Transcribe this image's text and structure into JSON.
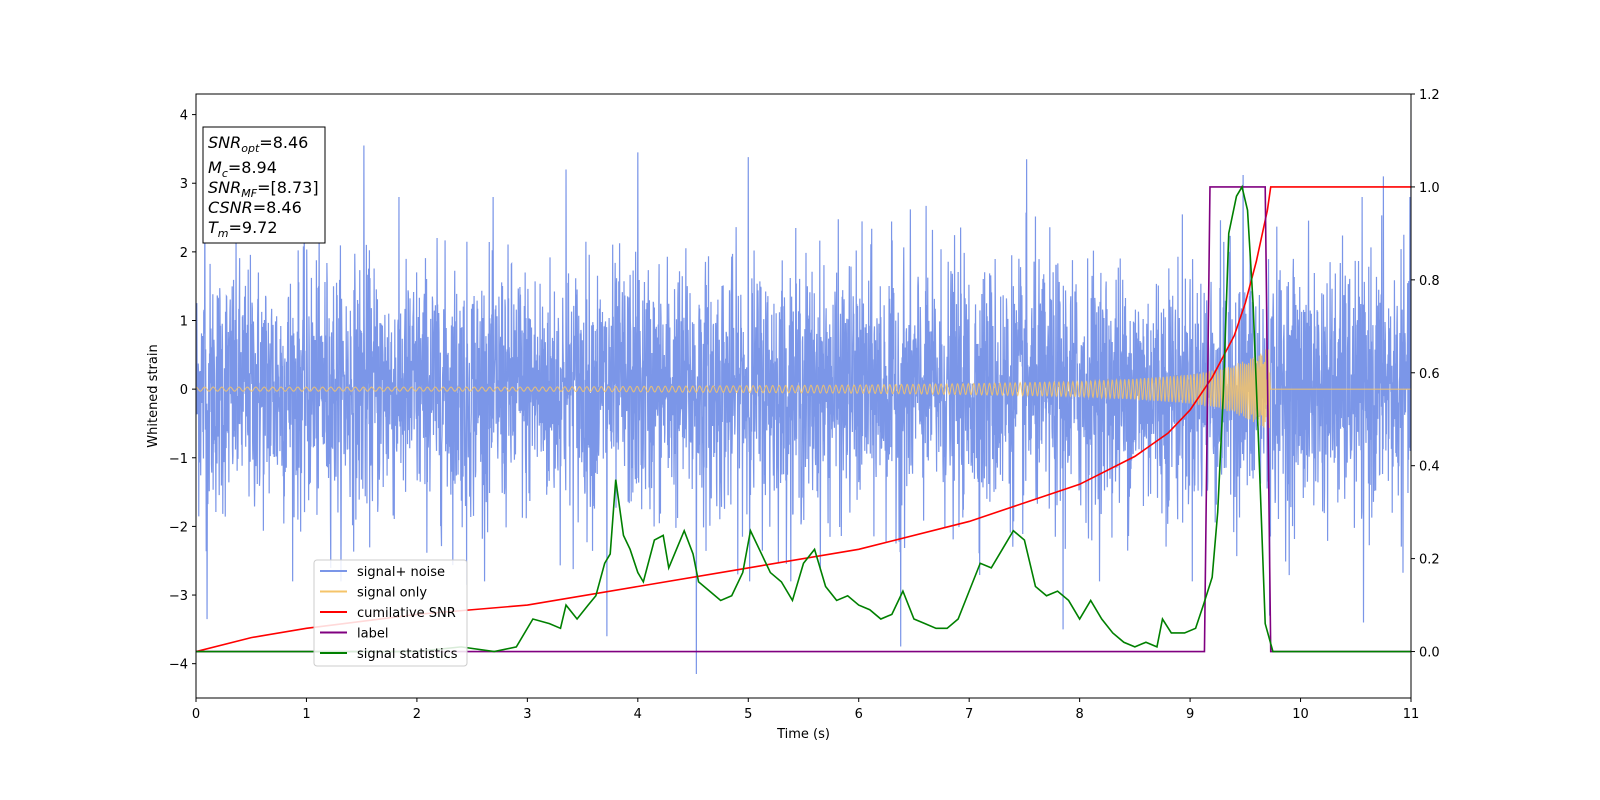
{
  "chart_data": {
    "type": "line",
    "title": "",
    "xlabel": "Time (s)",
    "ylabel": "Whitened strain",
    "xlim": [
      0,
      11
    ],
    "ylim": [
      -4.5,
      4.3
    ],
    "ylim_right": [
      -0.1,
      1.2
    ],
    "x_ticks": [
      0,
      1,
      2,
      3,
      4,
      5,
      6,
      7,
      8,
      9,
      10,
      11
    ],
    "y_ticks": [
      -4,
      -3,
      -2,
      -1,
      0,
      1,
      2,
      3,
      4
    ],
    "y_ticks_right": [
      0.0,
      0.2,
      0.4,
      0.6,
      0.8,
      1.0,
      1.2
    ],
    "grid": false,
    "legend_position": "lower-left",
    "info_box": {
      "position": "top-left",
      "lines": [
        {
          "main": "SNR",
          "sub": "opt",
          "value": "=8.46"
        },
        {
          "main": "M",
          "sub": "c",
          "value": "=8.94"
        },
        {
          "main": "SNR",
          "sub": "MF",
          "value": "=[8.73]"
        },
        {
          "main": "CSNR",
          "sub": "",
          "value": "=8.46"
        },
        {
          "main": "T",
          "sub": "m",
          "value": "=9.72"
        }
      ]
    },
    "series": [
      {
        "name": "signal+ noise",
        "axis": "left",
        "color": "#7b96e8",
        "style": "noise",
        "description_values": {
          "approx_std": 0.9,
          "min": -4.15,
          "max": 3.92
        },
        "peaks": [
          [
            0.08,
            2.9
          ],
          [
            0.1,
            -3.35
          ],
          [
            1.52,
            3.55
          ],
          [
            2.45,
            -2.85
          ],
          [
            3.35,
            3.2
          ],
          [
            3.72,
            -3.6
          ],
          [
            4.0,
            3.45
          ],
          [
            4.53,
            -4.15
          ],
          [
            5.0,
            3.38
          ],
          [
            6.38,
            -3.75
          ],
          [
            7.52,
            3.35
          ],
          [
            7.85,
            -3.5
          ],
          [
            9.48,
            3.12
          ],
          [
            9.72,
            -3.3
          ],
          [
            10.57,
            -3.4
          ],
          [
            10.75,
            3.1
          ],
          [
            11.0,
            3.92
          ]
        ]
      },
      {
        "name": "signal only",
        "axis": "left",
        "color": "#f5c46a",
        "style": "chirp",
        "amplitude_envelope": [
          [
            0,
            0.03
          ],
          [
            3,
            0.03
          ],
          [
            5,
            0.05
          ],
          [
            6,
            0.06
          ],
          [
            7,
            0.08
          ],
          [
            8,
            0.11
          ],
          [
            8.5,
            0.15
          ],
          [
            9,
            0.21
          ],
          [
            9.3,
            0.3
          ],
          [
            9.5,
            0.42
          ],
          [
            9.6,
            0.5
          ],
          [
            9.72,
            0.62
          ],
          [
            9.73,
            0
          ]
        ]
      },
      {
        "name": "cumilative SNR",
        "axis": "right",
        "color": "#ff0000",
        "points": [
          [
            0,
            0.0
          ],
          [
            0.5,
            0.03
          ],
          [
            1,
            0.05
          ],
          [
            2,
            0.08
          ],
          [
            3,
            0.1
          ],
          [
            4,
            0.14
          ],
          [
            5,
            0.18
          ],
          [
            6,
            0.22
          ],
          [
            7,
            0.28
          ],
          [
            7.5,
            0.32
          ],
          [
            8,
            0.36
          ],
          [
            8.5,
            0.42
          ],
          [
            8.8,
            0.47
          ],
          [
            9,
            0.52
          ],
          [
            9.2,
            0.59
          ],
          [
            9.4,
            0.68
          ],
          [
            9.5,
            0.75
          ],
          [
            9.6,
            0.84
          ],
          [
            9.7,
            0.95
          ],
          [
            9.73,
            1.0
          ],
          [
            11,
            1.0
          ]
        ]
      },
      {
        "name": "label",
        "axis": "right",
        "color": "#800080",
        "points": [
          [
            0,
            0.0
          ],
          [
            9.13,
            0.0
          ],
          [
            9.18,
            1.0
          ],
          [
            9.68,
            1.0
          ],
          [
            9.73,
            0.0
          ],
          [
            11,
            0.0
          ]
        ]
      },
      {
        "name": "signal statistics",
        "axis": "right",
        "color": "#008000",
        "points": [
          [
            0,
            0.0
          ],
          [
            0.5,
            0.0
          ],
          [
            1,
            0.0
          ],
          [
            2,
            0.0
          ],
          [
            2.4,
            0.01
          ],
          [
            2.7,
            0.0
          ],
          [
            2.9,
            0.01
          ],
          [
            3.05,
            0.07
          ],
          [
            3.2,
            0.06
          ],
          [
            3.3,
            0.05
          ],
          [
            3.35,
            0.1
          ],
          [
            3.45,
            0.07
          ],
          [
            3.55,
            0.1
          ],
          [
            3.62,
            0.12
          ],
          [
            3.7,
            0.19
          ],
          [
            3.75,
            0.21
          ],
          [
            3.8,
            0.37
          ],
          [
            3.87,
            0.25
          ],
          [
            3.93,
            0.22
          ],
          [
            4.0,
            0.17
          ],
          [
            4.05,
            0.15
          ],
          [
            4.15,
            0.24
          ],
          [
            4.23,
            0.25
          ],
          [
            4.28,
            0.18
          ],
          [
            4.35,
            0.22
          ],
          [
            4.42,
            0.26
          ],
          [
            4.5,
            0.21
          ],
          [
            4.55,
            0.15
          ],
          [
            4.65,
            0.13
          ],
          [
            4.75,
            0.11
          ],
          [
            4.85,
            0.12
          ],
          [
            4.95,
            0.17
          ],
          [
            5.02,
            0.26
          ],
          [
            5.1,
            0.22
          ],
          [
            5.2,
            0.17
          ],
          [
            5.3,
            0.15
          ],
          [
            5.4,
            0.11
          ],
          [
            5.5,
            0.19
          ],
          [
            5.6,
            0.22
          ],
          [
            5.7,
            0.14
          ],
          [
            5.8,
            0.11
          ],
          [
            5.9,
            0.12
          ],
          [
            6.0,
            0.1
          ],
          [
            6.1,
            0.09
          ],
          [
            6.2,
            0.07
          ],
          [
            6.3,
            0.08
          ],
          [
            6.4,
            0.13
          ],
          [
            6.5,
            0.07
          ],
          [
            6.6,
            0.06
          ],
          [
            6.7,
            0.05
          ],
          [
            6.8,
            0.05
          ],
          [
            6.9,
            0.07
          ],
          [
            7.0,
            0.13
          ],
          [
            7.1,
            0.19
          ],
          [
            7.2,
            0.18
          ],
          [
            7.3,
            0.22
          ],
          [
            7.4,
            0.26
          ],
          [
            7.5,
            0.24
          ],
          [
            7.6,
            0.14
          ],
          [
            7.7,
            0.12
          ],
          [
            7.8,
            0.13
          ],
          [
            7.9,
            0.11
          ],
          [
            8.0,
            0.07
          ],
          [
            8.1,
            0.11
          ],
          [
            8.2,
            0.07
          ],
          [
            8.3,
            0.04
          ],
          [
            8.4,
            0.02
          ],
          [
            8.5,
            0.01
          ],
          [
            8.6,
            0.02
          ],
          [
            8.7,
            0.01
          ],
          [
            8.75,
            0.07
          ],
          [
            8.83,
            0.04
          ],
          [
            8.95,
            0.04
          ],
          [
            9.05,
            0.05
          ],
          [
            9.12,
            0.1
          ],
          [
            9.2,
            0.16
          ],
          [
            9.25,
            0.3
          ],
          [
            9.3,
            0.55
          ],
          [
            9.35,
            0.9
          ],
          [
            9.42,
            0.98
          ],
          [
            9.47,
            1.0
          ],
          [
            9.52,
            0.95
          ],
          [
            9.57,
            0.75
          ],
          [
            9.62,
            0.45
          ],
          [
            9.68,
            0.06
          ],
          [
            9.75,
            0.0
          ],
          [
            11,
            0.0
          ]
        ]
      }
    ]
  }
}
